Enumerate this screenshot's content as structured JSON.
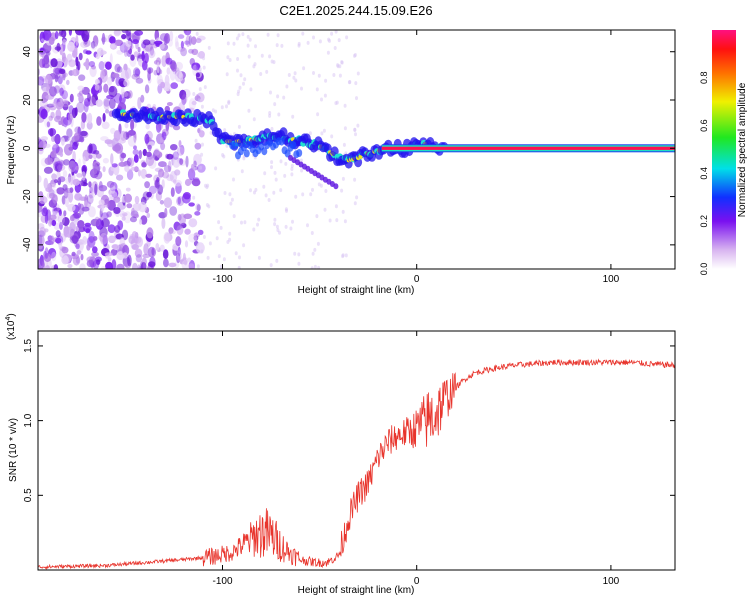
{
  "title": "C2E1.2025.244.15.09.E26",
  "chart_data": [
    {
      "type": "heatmap",
      "name": "spectrogram",
      "xlabel": "Height of straight line (km)",
      "ylabel": "Frequency (Hz)",
      "xlim": [
        -195,
        133
      ],
      "ylim": [
        -50,
        49
      ],
      "xticks": [
        -100,
        0,
        100
      ],
      "yticks": [
        -40,
        -20,
        0,
        20,
        40
      ],
      "ridge": {
        "x": [
          -155,
          -145,
          -130,
          -120,
          -110,
          -105,
          -100,
          -90,
          -80,
          -70,
          -60,
          -50,
          -40,
          -35,
          -30,
          -25,
          -20,
          -15,
          -10,
          -5,
          0,
          5,
          10,
          15,
          133
        ],
        "y": [
          14,
          14,
          13,
          13,
          12,
          11,
          3,
          3,
          4,
          5,
          3,
          1,
          -4,
          -5,
          -4,
          -2,
          -1,
          0,
          0,
          0,
          1,
          2,
          0,
          0,
          0
        ]
      },
      "colorbar": {
        "label": "Normalized spectral amplitude",
        "range": [
          0,
          1
        ],
        "ticks": [
          0.0,
          0.2,
          0.4,
          0.6,
          0.8
        ]
      }
    },
    {
      "type": "line",
      "name": "snr",
      "xlabel": "Height of straight line (km)",
      "ylabel": "SNR (10 * v/v)",
      "scale_label": "(x10",
      "scale_exp": "4",
      "scale_close": ")",
      "xlim": [
        -195,
        133
      ],
      "ylim": [
        0,
        1.6
      ],
      "xticks": [
        -100,
        0,
        100
      ],
      "yticks": [
        0.5,
        1.0,
        1.5
      ],
      "color": "#e8342c",
      "trend": {
        "x": [
          -195,
          -160,
          -140,
          -120,
          -105,
          -95,
          -88,
          -82,
          -78,
          -74,
          -68,
          -60,
          -52,
          -46,
          -40,
          -35,
          -30,
          -25,
          -20,
          -15,
          -10,
          -5,
          0,
          5,
          10,
          15,
          20,
          25,
          30,
          40,
          50,
          60,
          70,
          80,
          90,
          100,
          110,
          120,
          133
        ],
        "y": [
          0.02,
          0.03,
          0.05,
          0.07,
          0.09,
          0.12,
          0.18,
          0.24,
          0.25,
          0.22,
          0.14,
          0.07,
          0.05,
          0.05,
          0.1,
          0.35,
          0.5,
          0.58,
          0.75,
          0.85,
          0.9,
          0.92,
          0.95,
          1.0,
          1.05,
          1.15,
          1.22,
          1.28,
          1.32,
          1.35,
          1.37,
          1.38,
          1.39,
          1.39,
          1.39,
          1.39,
          1.39,
          1.38,
          1.37
        ]
      }
    }
  ]
}
